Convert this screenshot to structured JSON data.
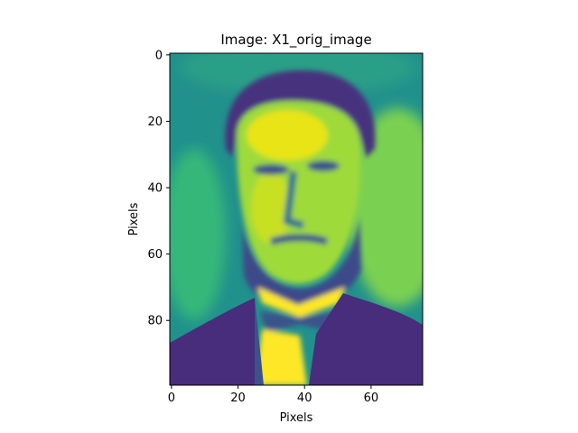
{
  "chart_data": {
    "type": "heatmap",
    "title": "Image: X1_orig_image",
    "xlabel": "Pixels",
    "ylabel": "Pixels",
    "image_width": 76,
    "image_height": 100,
    "xlim": [
      -0.5,
      75.5
    ],
    "ylim": [
      99.5,
      -0.5
    ],
    "xticks": [
      0,
      20,
      40,
      60
    ],
    "yticks": [
      0,
      20,
      40,
      60,
      80
    ],
    "xtick_labels": [
      "0",
      "20",
      "40",
      "60"
    ],
    "ytick_labels": [
      "0",
      "20",
      "40",
      "60",
      "80"
    ],
    "colormap": "viridis",
    "colormap_stops": [
      "#440154",
      "#3b528b",
      "#21918c",
      "#5ec962",
      "#fde725"
    ],
    "grid": false
  }
}
